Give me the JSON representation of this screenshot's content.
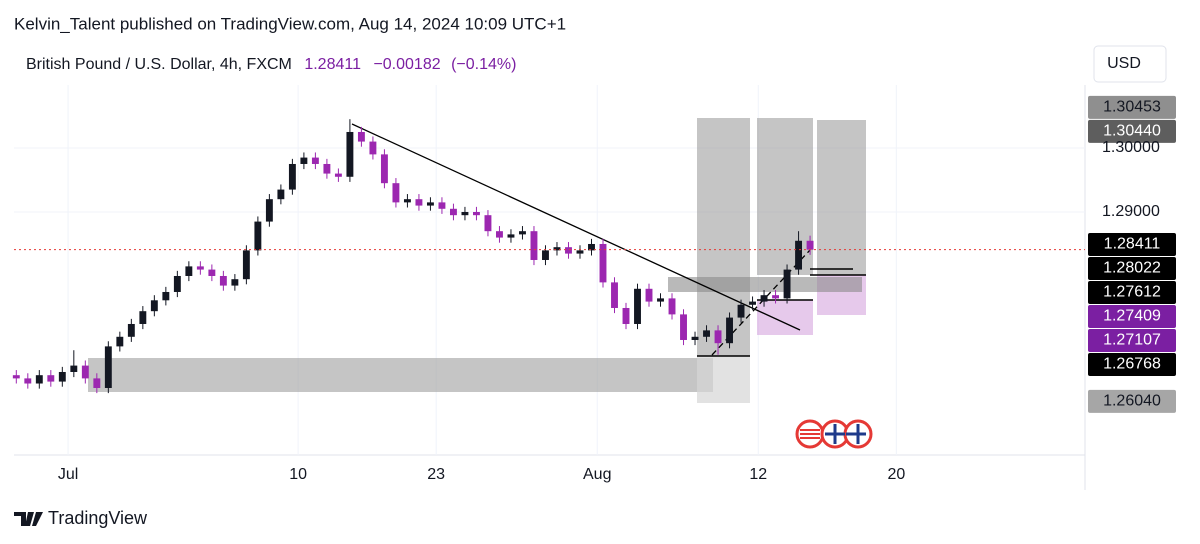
{
  "header": {
    "publisher": "Kelvin_Talent published on TradingView.com, Aug 14, 2024 10:09 UTC+1",
    "symbol": "British Pound / U.S. Dollar, 4h, FXCM",
    "last": "1.28411",
    "change": "−0.00182",
    "change_pct": "(−0.14%)",
    "currency": "USD"
  },
  "chart_data": {
    "type": "candlestick",
    "x": [
      -2.25,
      -1.75,
      -1.25,
      -0.75,
      -0.25,
      0.25,
      0.75,
      1.25,
      1.75,
      2.25,
      2.75,
      3.25,
      3.75,
      4.25,
      4.75,
      5.25,
      5.75,
      6.25,
      6.75,
      7.25,
      7.75,
      8.25,
      8.75,
      9.25,
      9.75,
      10.25,
      10.75,
      11.25,
      11.75,
      12.25,
      12.75,
      13.25,
      13.75,
      14.25,
      14.75,
      15.25,
      15.75,
      16.25,
      16.75,
      17.25,
      17.75,
      18.25,
      18.75,
      19.25,
      19.75,
      20.25,
      20.75,
      21.25,
      21.75,
      22.25,
      22.75,
      23.25,
      23.75,
      24.25,
      24.75,
      25.25,
      25.75,
      26.25,
      26.75,
      27.25,
      27.75,
      28.25,
      28.75,
      29.25,
      29.75,
      30.25,
      30.75,
      31.25,
      31.75,
      32.25
    ],
    "open": [
      1.2645,
      1.264,
      1.2632,
      1.2645,
      1.2635,
      1.265,
      1.266,
      1.264,
      1.2625,
      1.269,
      1.2705,
      1.2725,
      1.2745,
      1.2762,
      1.2775,
      1.28,
      1.2815,
      1.281,
      1.28,
      1.2785,
      1.2795,
      1.284,
      1.2885,
      1.292,
      1.2935,
      1.2975,
      1.2985,
      1.2975,
      1.296,
      1.2955,
      1.3025,
      1.301,
      1.299,
      1.2945,
      1.2915,
      1.292,
      1.291,
      1.2915,
      1.2905,
      1.2895,
      1.29,
      1.2895,
      1.287,
      1.286,
      1.2865,
      1.287,
      1.2825,
      1.284,
      1.2845,
      1.2835,
      1.284,
      1.285,
      1.279,
      1.275,
      1.2725,
      1.278,
      1.276,
      1.2765,
      1.274,
      1.27,
      1.2705,
      1.2715,
      1.2695,
      1.2735,
      1.2755,
      1.276,
      1.277,
      1.2765,
      1.281,
      1.2855
    ],
    "high": [
      1.2653,
      1.2648,
      1.2653,
      1.2653,
      1.2658,
      1.2684,
      1.2668,
      1.2648,
      1.2698,
      1.2713,
      1.2733,
      1.2753,
      1.277,
      1.2783,
      1.2808,
      1.2823,
      1.2823,
      1.2818,
      1.2808,
      1.2803,
      1.2848,
      1.2893,
      1.2928,
      1.2943,
      1.2983,
      1.2993,
      1.2993,
      1.2983,
      1.2968,
      1.3045,
      1.3033,
      1.3018,
      1.2998,
      1.2953,
      1.2928,
      1.2928,
      1.2923,
      1.2923,
      1.2913,
      1.2908,
      1.2908,
      1.2903,
      1.2878,
      1.2873,
      1.2878,
      1.2878,
      1.2848,
      1.2853,
      1.2853,
      1.2848,
      1.2858,
      1.2858,
      1.2798,
      1.2758,
      1.2788,
      1.2788,
      1.2773,
      1.2773,
      1.2748,
      1.2713,
      1.2723,
      1.2723,
      1.2743,
      1.2763,
      1.2768,
      1.2778,
      1.2778,
      1.2818,
      1.287,
      1.2863
    ],
    "low": [
      1.2632,
      1.2624,
      1.2624,
      1.2627,
      1.2627,
      1.2642,
      1.2632,
      1.2617,
      1.2617,
      1.2682,
      1.2697,
      1.2717,
      1.2737,
      1.2754,
      1.2767,
      1.2792,
      1.2802,
      1.2792,
      1.2777,
      1.2777,
      1.2787,
      1.2832,
      1.2877,
      1.2912,
      1.2927,
      1.2967,
      1.2967,
      1.2952,
      1.2947,
      1.2947,
      1.3002,
      1.2982,
      1.2937,
      1.2907,
      1.2907,
      1.2902,
      1.2902,
      1.2897,
      1.2887,
      1.2887,
      1.2887,
      1.2862,
      1.2852,
      1.2852,
      1.2857,
      1.2817,
      1.2817,
      1.2832,
      1.2827,
      1.2827,
      1.2832,
      1.2782,
      1.2742,
      1.2717,
      1.2717,
      1.2752,
      1.2752,
      1.2732,
      1.2692,
      1.2692,
      1.2697,
      1.2677,
      1.2687,
      1.2727,
      1.2747,
      1.2752,
      1.2757,
      1.2757,
      1.2802,
      1.2833
    ],
    "close": [
      1.264,
      1.2632,
      1.2645,
      1.2635,
      1.265,
      1.266,
      1.264,
      1.2625,
      1.269,
      1.2705,
      1.2725,
      1.2745,
      1.2762,
      1.2775,
      1.28,
      1.2815,
      1.281,
      1.28,
      1.2785,
      1.2795,
      1.284,
      1.2885,
      1.292,
      1.2935,
      1.2975,
      1.2985,
      1.2975,
      1.296,
      1.2955,
      1.3025,
      1.301,
      1.299,
      1.2945,
      1.2915,
      1.292,
      1.291,
      1.2915,
      1.2905,
      1.2895,
      1.29,
      1.2895,
      1.287,
      1.286,
      1.2865,
      1.287,
      1.2825,
      1.284,
      1.2845,
      1.2835,
      1.284,
      1.285,
      1.279,
      1.275,
      1.2725,
      1.278,
      1.276,
      1.2765,
      1.274,
      1.27,
      1.2705,
      1.2715,
      1.2695,
      1.2735,
      1.2755,
      1.276,
      1.277,
      1.2765,
      1.281,
      1.2855,
      1.28411
    ],
    "up_color": "#131722",
    "down_color": "#9c27b0",
    "xlim": [
      -2.35,
      44.2
    ],
    "xticks": [
      {
        "value": 0,
        "label": "Jul"
      },
      10,
      {
        "value": 16,
        "label": "23"
      },
      {
        "value": 23,
        "label": "Aug"
      },
      {
        "value": 30,
        "label": "12"
      },
      {
        "value": 36,
        "label": "20"
      }
    ],
    "ylim": [
      1.25203,
      1.30984
    ],
    "yticks": [
      {
        "value": 1.3,
        "label": "1.30000"
      },
      {
        "value": 1.29,
        "label": "1.29000"
      }
    ],
    "price_labels": [
      {
        "value": 1.30453,
        "label": "1.30453",
        "color": "#8f8f8f"
      },
      {
        "value": 1.3044,
        "label": "1.30440",
        "color": "#5e5e5e"
      },
      {
        "value": 1.28411,
        "label": "1.28411",
        "color": "#000000"
      },
      {
        "value": 1.28022,
        "label": "1.28022",
        "color": "#000000"
      },
      {
        "value": 1.27612,
        "label": "1.27612",
        "color": "#000000"
      },
      {
        "value": 1.27409,
        "label": "1.27409",
        "color": "#7b1fa2"
      },
      {
        "value": 1.27107,
        "label": "1.27107",
        "color": "#7b1fa2"
      },
      {
        "value": 1.26768,
        "label": "1.26768",
        "color": "#000000"
      },
      {
        "value": 1.2604,
        "label": "1.26040",
        "color": "#a6a6a6"
      }
    ]
  },
  "footer": {
    "brand": "TradingView"
  }
}
